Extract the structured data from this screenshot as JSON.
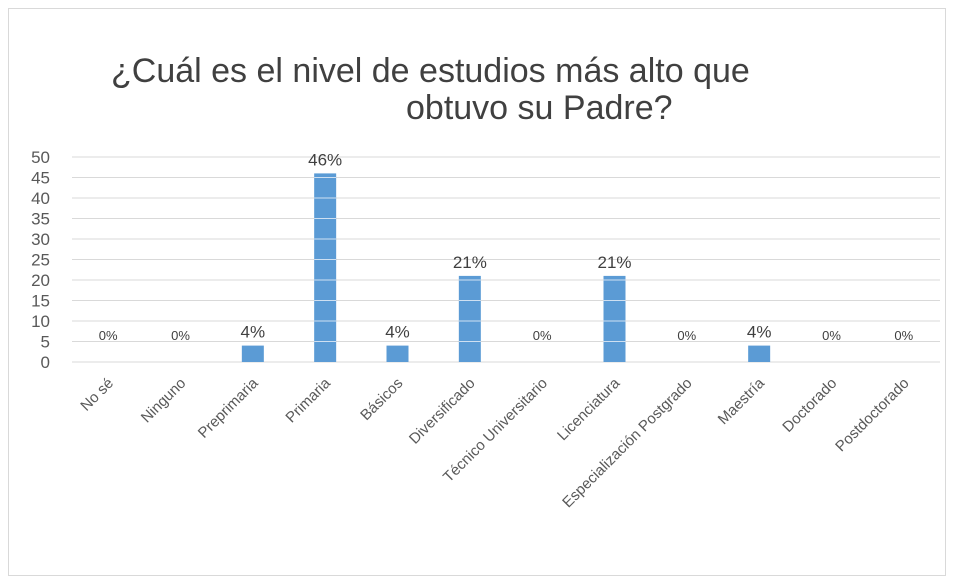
{
  "chart_data": {
    "type": "bar",
    "title_lines": [
      "¿Cuál es el nivel de estudios más alto que",
      "obtuvo su Padre?"
    ],
    "categories": [
      "No sé",
      "Ninguno",
      "Preprimaria",
      "Primaria",
      "Básicos",
      "Diversificado",
      "Técnico Universitario",
      "Licenciatura",
      "Especialización Postgrado",
      "Maestría",
      "Doctorado",
      "Postdoctorado"
    ],
    "values": [
      0,
      0,
      4,
      46,
      4,
      21,
      0,
      21,
      0,
      4,
      0,
      0
    ],
    "data_labels": [
      "0%",
      "0%",
      "4%",
      "46%",
      "4%",
      "21%",
      "0%",
      "21%",
      "0%",
      "4%",
      "0%",
      "0%"
    ],
    "ylim": [
      0,
      50
    ],
    "yticks": [
      0,
      5,
      10,
      15,
      20,
      25,
      30,
      35,
      40,
      45,
      50
    ],
    "grid": true,
    "legend": "none",
    "colors": {
      "bar": "#5b9bd5",
      "grid": "#d9d9d9",
      "text": "#595959",
      "title": "#404040"
    }
  }
}
